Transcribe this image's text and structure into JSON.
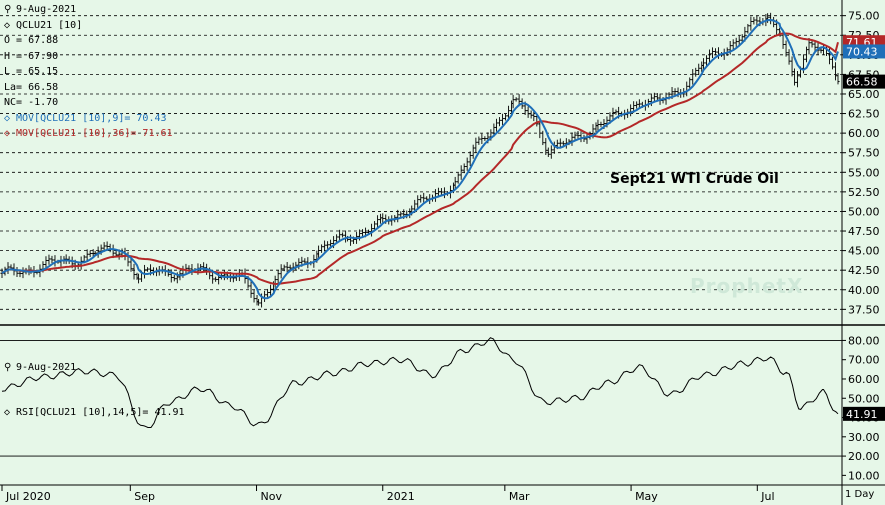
{
  "legend": {
    "date": "9-Aug-2021",
    "symbol": "QCLU21 [10]",
    "open": "O = 67.88",
    "high": "H = 67.90",
    "low": "L = 65.15",
    "last": "La= 66.58",
    "net_change": "NC= -1.70",
    "ma9": "MOV[QCLU21 [10],9]= 70.43",
    "ma36": "MOV[QCLU21 [10],36]= 71.61"
  },
  "annotation": "Sept21 WTI Crude Oil",
  "watermark": "ProphetX",
  "rsi_legend": {
    "date": "9-Aug-2021",
    "label": "RSI[QCLU21 [10],14,5]= 41.91"
  },
  "period_label": "1 Day",
  "colors": {
    "background": "#e6f7e8",
    "ma9": "#1f6fb8",
    "ma36": "#b42828",
    "bars": "#000000"
  },
  "chart_data": [
    {
      "type": "line",
      "subtype": "ohlc-bars-with-moving-averages",
      "ylim": [
        35.5,
        77.0
      ],
      "y_axis_side": "right",
      "yticks": [
        37.5,
        40.0,
        42.5,
        45.0,
        47.5,
        50.0,
        52.5,
        55.0,
        57.5,
        60.0,
        62.5,
        65.0,
        67.5,
        70.0,
        72.5,
        75.0
      ],
      "ytick_labels": [
        "37.50",
        "40.00",
        "42.50",
        "45.00",
        "47.50",
        "50.00",
        "52.50",
        "55.00",
        "57.50",
        "60.00",
        "62.50",
        "65.00",
        "67.50",
        "70.00",
        "72.50",
        "75.00"
      ],
      "grid": "horizontal-dashed",
      "last_value_tags": [
        {
          "value": 71.61,
          "label": "71.61",
          "color": "#b42828"
        },
        {
          "value": 70.43,
          "label": "70.43",
          "color": "#1f6fb8"
        },
        {
          "value": 66.58,
          "label": "66.58",
          "color": "#000000"
        }
      ],
      "x_labels": [
        "Jul 2020",
        "Sep",
        "Nov",
        "2021",
        "Mar",
        "May",
        "Jul"
      ],
      "close_series": [
        [
          "2020-07-01",
          41.8
        ],
        [
          "2020-07-15",
          42.8
        ],
        [
          "2020-08-01",
          43.6
        ],
        [
          "2020-08-15",
          44.6
        ],
        [
          "2020-08-28",
          45.2
        ],
        [
          "2020-09-05",
          41.3
        ],
        [
          "2020-09-15",
          42.6
        ],
        [
          "2020-09-25",
          42.1
        ],
        [
          "2020-10-05",
          42.4
        ],
        [
          "2020-10-15",
          42.0
        ],
        [
          "2020-10-25",
          41.2
        ],
        [
          "2020-11-02",
          38.6
        ],
        [
          "2020-11-10",
          41.5
        ],
        [
          "2020-11-20",
          43.0
        ],
        [
          "2020-12-01",
          45.0
        ],
        [
          "2020-12-15",
          46.8
        ],
        [
          "2021-01-01",
          48.4
        ],
        [
          "2021-01-15",
          50.8
        ],
        [
          "2021-01-25",
          51.5
        ],
        [
          "2021-02-05",
          54.0
        ],
        [
          "2021-02-15",
          58.0
        ],
        [
          "2021-02-25",
          61.5
        ],
        [
          "2021-03-05",
          63.8
        ],
        [
          "2021-03-15",
          62.0
        ],
        [
          "2021-03-22",
          58.0
        ],
        [
          "2021-04-01",
          58.6
        ],
        [
          "2021-04-15",
          61.2
        ],
        [
          "2021-04-25",
          62.0
        ],
        [
          "2021-05-05",
          64.3
        ],
        [
          "2021-05-15",
          63.8
        ],
        [
          "2021-05-25",
          65.8
        ],
        [
          "2021-06-05",
          68.8
        ],
        [
          "2021-06-15",
          70.8
        ],
        [
          "2021-06-25",
          72.9
        ],
        [
          "2021-07-06",
          74.8
        ],
        [
          "2021-07-12",
          73.5
        ],
        [
          "2021-07-19",
          66.0
        ],
        [
          "2021-07-26",
          71.0
        ],
        [
          "2021-08-02",
          71.5
        ],
        [
          "2021-08-09",
          66.58
        ]
      ],
      "ma9_end": 70.43,
      "ma36_end": 71.61
    },
    {
      "type": "line",
      "name": "RSI[QCLU21 [10],14,5]",
      "ylim": [
        5,
        88
      ],
      "yticks": [
        10.0,
        20.0,
        30.0,
        40.0,
        50.0,
        60.0,
        70.0,
        80.0
      ],
      "ytick_labels": [
        "10.00",
        "20.00",
        "30.00",
        "40.00",
        "50.00",
        "60.00",
        "70.00",
        "80.00"
      ],
      "reference_lines": [
        80,
        20
      ],
      "last_value_tag": {
        "value": 41.91,
        "label": "41.91"
      },
      "x": [
        "2020-07-01",
        "2020-07-20",
        "2020-08-10",
        "2020-08-25",
        "2020-09-08",
        "2020-09-20",
        "2020-10-05",
        "2020-10-20",
        "2020-11-02",
        "2020-11-20",
        "2020-12-08",
        "2020-12-25",
        "2021-01-10",
        "2021-01-25",
        "2021-02-10",
        "2021-02-22",
        "2021-03-05",
        "2021-03-20",
        "2021-04-05",
        "2021-04-20",
        "2021-05-05",
        "2021-05-20",
        "2021-06-05",
        "2021-06-25",
        "2021-07-06",
        "2021-07-15",
        "2021-07-22",
        "2021-08-02",
        "2021-08-09"
      ],
      "values": [
        55,
        61,
        64,
        62,
        34,
        48,
        55,
        46,
        36,
        58,
        63,
        68,
        70,
        62,
        75,
        80,
        70,
        48,
        50,
        58,
        66,
        52,
        62,
        68,
        71,
        63,
        45,
        53,
        41.91
      ]
    }
  ]
}
